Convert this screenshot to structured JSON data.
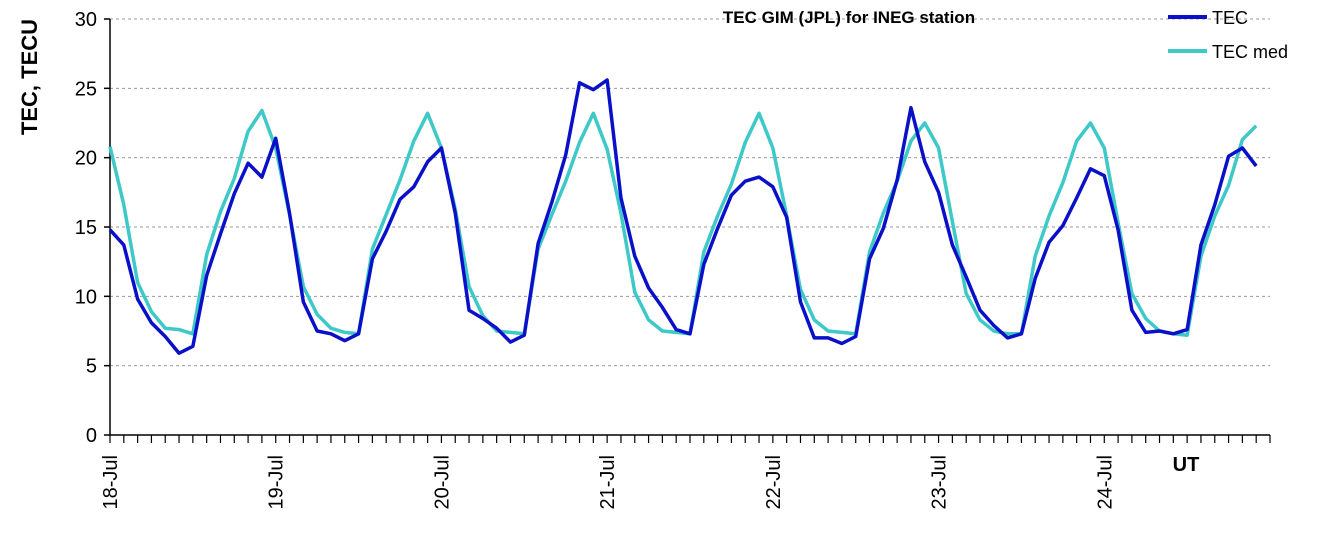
{
  "chart_data": {
    "type": "line",
    "title": "TEC GIM (JPL) for INEG station",
    "xlabel": "UT",
    "ylabel": "TEC, TECU",
    "ylim": [
      0,
      30
    ],
    "yticks": [
      "0",
      "5",
      "10",
      "15",
      "20",
      "25",
      "30"
    ],
    "grid": "horizontal dashed",
    "legend_position": "top-right",
    "x_tick_labels": [
      "18-Jul",
      "19-Jul",
      "20-Jul",
      "21-Jul",
      "22-Jul",
      "23-Jul",
      "24-Jul"
    ],
    "series": [
      {
        "name": "TEC",
        "color": "#0a10c8",
        "values": [
          14.8,
          13.7,
          9.8,
          8.1,
          7.1,
          5.9,
          6.4,
          11.5,
          14.5,
          17.4,
          19.6,
          18.6,
          21.4,
          16.0,
          9.6,
          7.5,
          7.3,
          6.8,
          7.3,
          12.7,
          14.7,
          17.0,
          17.9,
          19.7,
          20.7,
          16.0,
          9.0,
          8.4,
          7.7,
          6.7,
          7.2,
          13.8,
          16.8,
          20.2,
          25.4,
          24.9,
          25.6,
          17.1,
          12.9,
          10.6,
          9.2,
          7.6,
          7.3,
          12.3,
          14.9,
          17.3,
          18.3,
          18.6,
          17.9,
          15.7,
          9.6,
          7.0,
          7.0,
          6.6,
          7.1,
          12.7,
          14.9,
          18.4,
          23.6,
          19.7,
          17.5,
          13.7,
          11.4,
          9.0,
          7.9,
          7.0,
          7.3,
          11.3,
          13.9,
          15.1,
          17.1,
          19.2,
          18.7,
          14.8,
          9.0,
          7.4,
          7.5,
          7.3,
          7.6,
          13.7,
          16.6,
          20.1,
          20.7,
          19.4
        ]
      },
      {
        "name": "TEC med",
        "color": "#3ec8c8",
        "values": [
          20.8,
          16.6,
          11.0,
          8.9,
          7.7,
          7.6,
          7.3,
          13.0,
          16.1,
          18.5,
          21.9,
          23.4,
          20.7,
          15.9,
          10.7,
          8.7,
          7.7,
          7.4,
          7.3,
          13.4,
          15.9,
          18.4,
          21.2,
          23.2,
          20.7,
          16.3,
          10.7,
          8.6,
          7.5,
          7.4,
          7.3,
          13.4,
          15.9,
          18.3,
          21.1,
          23.2,
          20.6,
          16.0,
          10.3,
          8.3,
          7.5,
          7.4,
          7.3,
          13.2,
          15.8,
          18.1,
          21.1,
          23.2,
          20.7,
          15.8,
          10.5,
          8.3,
          7.5,
          7.4,
          7.3,
          13.2,
          16.0,
          18.3,
          21.2,
          22.5,
          20.7,
          15.4,
          10.2,
          8.3,
          7.5,
          7.3,
          7.3,
          12.9,
          15.8,
          18.2,
          21.2,
          22.5,
          20.7,
          15.3,
          10.2,
          8.4,
          7.5,
          7.3,
          7.2,
          12.9,
          15.8,
          18.0,
          21.3,
          22.3
        ]
      }
    ]
  }
}
